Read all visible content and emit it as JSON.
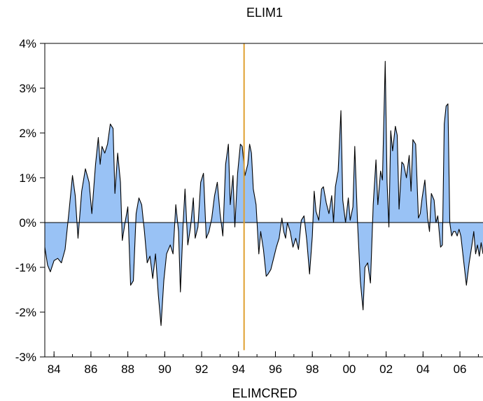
{
  "chart_data": {
    "type": "area",
    "title": "ELIM1",
    "xlabel": "ELIMCRED",
    "ylabel": "",
    "x_start": 1983.5,
    "x_end": 2007.25,
    "xlim": [
      1983.5,
      2007.25
    ],
    "ylim": [
      -3,
      4
    ],
    "y_unit": "%",
    "grid": false,
    "legend": "none",
    "fill_color": "#99c2f5",
    "line_color": "#000000",
    "zero_line_color": "#000000",
    "vline_color": "#e0a030",
    "vertical_line": {
      "x": 1994.3,
      "y_from": -2.85,
      "y_to": 4.0
    },
    "x_ticks": [
      {
        "value": 1984,
        "label": "84"
      },
      {
        "value": 1986,
        "label": "86"
      },
      {
        "value": 1988,
        "label": "88"
      },
      {
        "value": 1990,
        "label": "90"
      },
      {
        "value": 1992,
        "label": "92"
      },
      {
        "value": 1994,
        "label": "94"
      },
      {
        "value": 1996,
        "label": "96"
      },
      {
        "value": 1998,
        "label": "98"
      },
      {
        "value": 2000,
        "label": "00"
      },
      {
        "value": 2002,
        "label": "02"
      },
      {
        "value": 2004,
        "label": "04"
      },
      {
        "value": 2006,
        "label": "06"
      }
    ],
    "y_ticks": [
      {
        "value": 4,
        "label": "4%"
      },
      {
        "value": 3,
        "label": "3%"
      },
      {
        "value": 2,
        "label": "2%"
      },
      {
        "value": 1,
        "label": "1%"
      },
      {
        "value": 0,
        "label": "0%"
      },
      {
        "value": -1,
        "label": "-1%"
      },
      {
        "value": -2,
        "label": "-2%"
      },
      {
        "value": -3,
        "label": "-3%"
      }
    ],
    "points": [
      [
        1983.5,
        -0.55
      ],
      [
        1983.65,
        -0.95
      ],
      [
        1983.8,
        -1.1
      ],
      [
        1984.0,
        -0.85
      ],
      [
        1984.2,
        -0.8
      ],
      [
        1984.4,
        -0.9
      ],
      [
        1984.6,
        -0.6
      ],
      [
        1984.8,
        0.2
      ],
      [
        1985.0,
        1.05
      ],
      [
        1985.15,
        0.6
      ],
      [
        1985.3,
        -0.35
      ],
      [
        1985.5,
        0.7
      ],
      [
        1985.7,
        1.2
      ],
      [
        1985.9,
        0.9
      ],
      [
        1986.05,
        0.2
      ],
      [
        1986.25,
        1.3
      ],
      [
        1986.4,
        1.9
      ],
      [
        1986.5,
        1.3
      ],
      [
        1986.6,
        1.7
      ],
      [
        1986.75,
        1.55
      ],
      [
        1986.9,
        1.75
      ],
      [
        1987.05,
        2.2
      ],
      [
        1987.2,
        2.1
      ],
      [
        1987.3,
        0.65
      ],
      [
        1987.45,
        1.55
      ],
      [
        1987.6,
        0.9
      ],
      [
        1987.7,
        -0.4
      ],
      [
        1987.85,
        0.0
      ],
      [
        1988.0,
        0.35
      ],
      [
        1988.15,
        -1.4
      ],
      [
        1988.3,
        -1.3
      ],
      [
        1988.45,
        0.2
      ],
      [
        1988.6,
        0.55
      ],
      [
        1988.75,
        0.4
      ],
      [
        1988.9,
        -0.2
      ],
      [
        1989.05,
        -0.9
      ],
      [
        1989.2,
        -0.75
      ],
      [
        1989.35,
        -1.25
      ],
      [
        1989.5,
        -0.7
      ],
      [
        1989.65,
        -1.6
      ],
      [
        1989.8,
        -2.3
      ],
      [
        1989.95,
        -1.3
      ],
      [
        1990.1,
        -0.7
      ],
      [
        1990.3,
        -0.5
      ],
      [
        1990.45,
        -0.7
      ],
      [
        1990.6,
        0.4
      ],
      [
        1990.75,
        -0.2
      ],
      [
        1990.85,
        -1.55
      ],
      [
        1991.0,
        0.0
      ],
      [
        1991.1,
        0.75
      ],
      [
        1991.25,
        -0.5
      ],
      [
        1991.4,
        -0.1
      ],
      [
        1991.55,
        0.55
      ],
      [
        1991.65,
        -0.35
      ],
      [
        1991.8,
        -0.1
      ],
      [
        1991.95,
        0.9
      ],
      [
        1992.1,
        1.1
      ],
      [
        1992.25,
        -0.35
      ],
      [
        1992.4,
        -0.2
      ],
      [
        1992.55,
        0.1
      ],
      [
        1992.7,
        0.6
      ],
      [
        1992.85,
        0.9
      ],
      [
        1993.0,
        0.2
      ],
      [
        1993.15,
        -0.3
      ],
      [
        1993.3,
        1.3
      ],
      [
        1993.45,
        1.75
      ],
      [
        1993.55,
        0.4
      ],
      [
        1993.7,
        1.05
      ],
      [
        1993.8,
        -0.1
      ],
      [
        1993.95,
        1.1
      ],
      [
        1994.1,
        1.75
      ],
      [
        1994.2,
        1.7
      ],
      [
        1994.35,
        1.05
      ],
      [
        1994.5,
        1.3
      ],
      [
        1994.6,
        1.75
      ],
      [
        1994.7,
        1.55
      ],
      [
        1994.8,
        0.75
      ],
      [
        1994.95,
        0.4
      ],
      [
        1995.1,
        -0.7
      ],
      [
        1995.2,
        -0.2
      ],
      [
        1995.35,
        -0.6
      ],
      [
        1995.5,
        -1.2
      ],
      [
        1995.6,
        -1.15
      ],
      [
        1995.75,
        -1.05
      ],
      [
        1995.9,
        -0.8
      ],
      [
        1996.05,
        -0.55
      ],
      [
        1996.2,
        -0.35
      ],
      [
        1996.35,
        0.1
      ],
      [
        1996.45,
        -0.2
      ],
      [
        1996.55,
        -0.35
      ],
      [
        1996.65,
        0.0
      ],
      [
        1996.8,
        -0.2
      ],
      [
        1996.95,
        -0.55
      ],
      [
        1997.1,
        -0.35
      ],
      [
        1997.25,
        -0.6
      ],
      [
        1997.4,
        0.05
      ],
      [
        1997.55,
        0.15
      ],
      [
        1997.7,
        -0.4
      ],
      [
        1997.85,
        -1.15
      ],
      [
        1998.0,
        -0.3
      ],
      [
        1998.1,
        0.7
      ],
      [
        1998.2,
        0.25
      ],
      [
        1998.35,
        0.05
      ],
      [
        1998.5,
        0.75
      ],
      [
        1998.6,
        0.8
      ],
      [
        1998.75,
        0.45
      ],
      [
        1998.9,
        0.2
      ],
      [
        1999.05,
        0.6
      ],
      [
        1999.15,
        0.0
      ],
      [
        1999.25,
        0.8
      ],
      [
        1999.4,
        1.15
      ],
      [
        1999.55,
        2.5
      ],
      [
        1999.65,
        0.5
      ],
      [
        1999.8,
        0.0
      ],
      [
        1999.95,
        0.55
      ],
      [
        2000.05,
        0.05
      ],
      [
        2000.2,
        0.35
      ],
      [
        2000.3,
        1.7
      ],
      [
        2000.45,
        0.0
      ],
      [
        2000.6,
        -1.3
      ],
      [
        2000.75,
        -1.95
      ],
      [
        2000.85,
        -1.0
      ],
      [
        2001.0,
        -0.9
      ],
      [
        2001.15,
        -1.35
      ],
      [
        2001.3,
        0.4
      ],
      [
        2001.45,
        1.4
      ],
      [
        2001.55,
        0.4
      ],
      [
        2001.7,
        1.15
      ],
      [
        2001.8,
        0.95
      ],
      [
        2001.95,
        3.6
      ],
      [
        2002.05,
        0.9
      ],
      [
        2002.15,
        -0.1
      ],
      [
        2002.25,
        2.05
      ],
      [
        2002.35,
        1.6
      ],
      [
        2002.5,
        2.15
      ],
      [
        2002.6,
        1.95
      ],
      [
        2002.7,
        0.3
      ],
      [
        2002.85,
        1.35
      ],
      [
        2002.95,
        1.3
      ],
      [
        2003.1,
        1.0
      ],
      [
        2003.25,
        1.5
      ],
      [
        2003.35,
        0.7
      ],
      [
        2003.45,
        1.85
      ],
      [
        2003.6,
        1.75
      ],
      [
        2003.75,
        0.1
      ],
      [
        2003.85,
        0.2
      ],
      [
        2003.95,
        0.55
      ],
      [
        2004.1,
        0.95
      ],
      [
        2004.25,
        0.1
      ],
      [
        2004.35,
        -0.2
      ],
      [
        2004.45,
        0.65
      ],
      [
        2004.6,
        0.5
      ],
      [
        2004.7,
        0.0
      ],
      [
        2004.8,
        0.15
      ],
      [
        2004.95,
        -0.55
      ],
      [
        2005.05,
        -0.5
      ],
      [
        2005.15,
        2.2
      ],
      [
        2005.25,
        2.6
      ],
      [
        2005.35,
        2.65
      ],
      [
        2005.45,
        0.0
      ],
      [
        2005.55,
        -0.3
      ],
      [
        2005.65,
        -0.2
      ],
      [
        2005.75,
        -0.2
      ],
      [
        2005.85,
        -0.3
      ],
      [
        2005.95,
        -0.15
      ],
      [
        2006.05,
        -0.3
      ],
      [
        2006.2,
        -0.85
      ],
      [
        2006.35,
        -1.4
      ],
      [
        2006.5,
        -0.9
      ],
      [
        2006.65,
        -0.5
      ],
      [
        2006.75,
        -0.2
      ],
      [
        2006.85,
        -0.7
      ],
      [
        2006.95,
        -0.5
      ],
      [
        2007.05,
        -0.75
      ],
      [
        2007.15,
        -0.45
      ],
      [
        2007.25,
        -0.7
      ]
    ]
  }
}
